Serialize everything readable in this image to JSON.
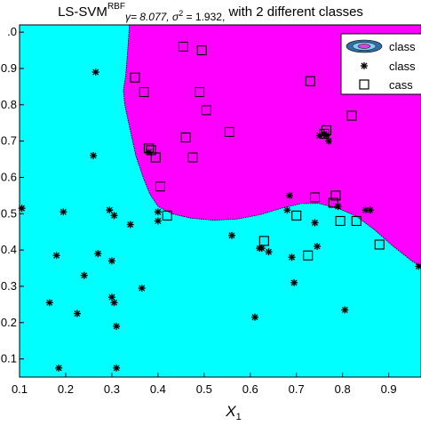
{
  "chart_data": {
    "type": "scatter",
    "title": {
      "prefix": "LS-SVM",
      "superscript": "RBF",
      "gamma_part": "γ= 8.077, σ",
      "sigma_exp": "2",
      "sigma_part": " = 1.932,",
      "suffix": " with 2 different classes"
    },
    "xlabel": "X",
    "xlabel_sub": "1",
    "xlim": [
      0.1,
      0.97
    ],
    "ylim": [
      0.05,
      1.02
    ],
    "x_ticks": [
      "0.1",
      "0.2",
      "0.3",
      "0.4",
      "0.5",
      "0.6",
      "0.7",
      "0.8",
      "0.9"
    ],
    "y_ticks": [
      "0.1",
      "0.2",
      "0.3",
      "0.4",
      "0.5",
      "0.6",
      "0.7",
      "0.8",
      "0.9",
      ".0"
    ],
    "y_tick_values": [
      0.1,
      0.2,
      0.3,
      0.4,
      0.5,
      0.6,
      0.7,
      0.8,
      0.9,
      1.0
    ],
    "x_tick_values": [
      0.1,
      0.2,
      0.3,
      0.4,
      0.5,
      0.6,
      0.7,
      0.8,
      0.9
    ],
    "region_colors": {
      "class_1": "#00ffff",
      "class_2": "#ff00ff"
    },
    "decision_boundary": [
      [
        0.338,
        1.02
      ],
      [
        0.335,
        0.96
      ],
      [
        0.33,
        0.88
      ],
      [
        0.325,
        0.84
      ],
      [
        0.328,
        0.8
      ],
      [
        0.338,
        0.74
      ],
      [
        0.352,
        0.66
      ],
      [
        0.368,
        0.6
      ],
      [
        0.382,
        0.555
      ],
      [
        0.4,
        0.52
      ],
      [
        0.43,
        0.5
      ],
      [
        0.47,
        0.488
      ],
      [
        0.52,
        0.482
      ],
      [
        0.57,
        0.485
      ],
      [
        0.62,
        0.497
      ],
      [
        0.67,
        0.516
      ],
      [
        0.71,
        0.528
      ],
      [
        0.75,
        0.528
      ],
      [
        0.79,
        0.515
      ],
      [
        0.83,
        0.493
      ],
      [
        0.87,
        0.455
      ],
      [
        0.91,
        0.41
      ],
      [
        0.95,
        0.37
      ],
      [
        0.97,
        0.355
      ]
    ],
    "legend": {
      "position": "top-right",
      "entries": [
        "class",
        "class",
        "cass"
      ]
    },
    "series": [
      {
        "marker": "star",
        "points": [
          [
            0.105,
            0.515
          ],
          [
            0.18,
            0.385
          ],
          [
            0.195,
            0.505
          ],
          [
            0.165,
            0.255
          ],
          [
            0.225,
            0.225
          ],
          [
            0.24,
            0.33
          ],
          [
            0.26,
            0.66
          ],
          [
            0.265,
            0.89
          ],
          [
            0.27,
            0.39
          ],
          [
            0.295,
            0.51
          ],
          [
            0.3,
            0.37
          ],
          [
            0.305,
            0.495
          ],
          [
            0.3,
            0.27
          ],
          [
            0.305,
            0.255
          ],
          [
            0.31,
            0.19
          ],
          [
            0.31,
            0.075
          ],
          [
            0.185,
            0.075
          ],
          [
            0.34,
            0.47
          ],
          [
            0.365,
            0.295
          ],
          [
            0.38,
            0.67
          ],
          [
            0.4,
            0.505
          ],
          [
            0.4,
            0.48
          ],
          [
            0.56,
            0.44
          ],
          [
            0.61,
            0.215
          ],
          [
            0.62,
            0.405
          ],
          [
            0.625,
            0.405
          ],
          [
            0.64,
            0.395
          ],
          [
            0.685,
            0.55
          ],
          [
            0.68,
            0.51
          ],
          [
            0.69,
            0.38
          ],
          [
            0.695,
            0.31
          ],
          [
            0.74,
            0.475
          ],
          [
            0.745,
            0.41
          ],
          [
            0.75,
            0.715
          ],
          [
            0.76,
            0.72
          ],
          [
            0.765,
            0.715
          ],
          [
            0.77,
            0.7
          ],
          [
            0.79,
            0.52
          ],
          [
            0.805,
            0.235
          ],
          [
            0.85,
            0.51
          ],
          [
            0.86,
            0.51
          ],
          [
            0.965,
            0.355
          ]
        ]
      },
      {
        "marker": "square",
        "points": [
          [
            0.35,
            0.875
          ],
          [
            0.37,
            0.835
          ],
          [
            0.38,
            0.68
          ],
          [
            0.385,
            0.675
          ],
          [
            0.395,
            0.655
          ],
          [
            0.405,
            0.575
          ],
          [
            0.42,
            0.495
          ],
          [
            0.455,
            0.96
          ],
          [
            0.46,
            0.71
          ],
          [
            0.475,
            0.655
          ],
          [
            0.49,
            0.835
          ],
          [
            0.495,
            0.95
          ],
          [
            0.505,
            0.785
          ],
          [
            0.555,
            0.725
          ],
          [
            0.63,
            0.425
          ],
          [
            0.7,
            0.495
          ],
          [
            0.725,
            0.385
          ],
          [
            0.73,
            0.865
          ],
          [
            0.74,
            0.545
          ],
          [
            0.76,
            0.72
          ],
          [
            0.765,
            0.73
          ],
          [
            0.78,
            0.53
          ],
          [
            0.785,
            0.55
          ],
          [
            0.795,
            0.48
          ],
          [
            0.82,
            0.77
          ],
          [
            0.83,
            0.48
          ],
          [
            0.88,
            0.415
          ]
        ]
      }
    ]
  }
}
